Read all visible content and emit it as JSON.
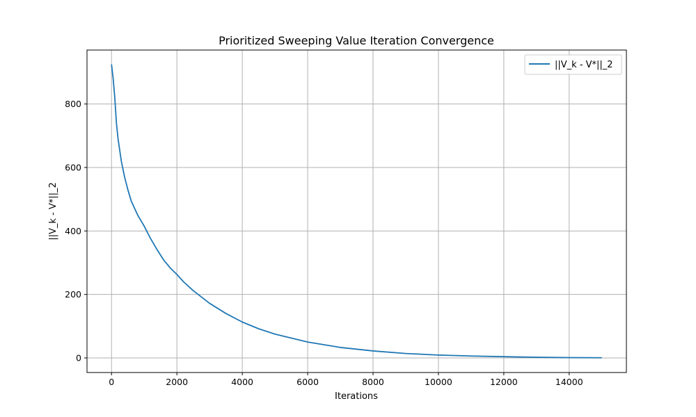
{
  "chart_data": {
    "type": "line",
    "title": "Prioritized Sweeping Value Iteration Convergence",
    "xlabel": "Iterations",
    "ylabel": "||V_k - V*||_2",
    "xlim": [
      -750,
      15750
    ],
    "ylim": [
      -46,
      970
    ],
    "xticks": [
      0,
      2000,
      4000,
      6000,
      8000,
      10000,
      12000,
      14000
    ],
    "yticks": [
      0,
      200,
      400,
      600,
      800
    ],
    "grid": true,
    "legend_position": "upper right",
    "series": [
      {
        "name": "||V_k - V*||_2",
        "color": "#1f77b4",
        "x": [
          0,
          50,
          100,
          150,
          200,
          300,
          400,
          500,
          600,
          800,
          1000,
          1100,
          1200,
          1400,
          1600,
          1800,
          2000,
          2200,
          2500,
          3000,
          3500,
          4000,
          4500,
          5000,
          6000,
          7000,
          8000,
          9000,
          10000,
          11000,
          12000,
          13000,
          14000,
          15000
        ],
        "values": [
          925,
          880,
          820,
          740,
          690,
          620,
          570,
          530,
          495,
          450,
          415,
          395,
          375,
          340,
          308,
          283,
          263,
          240,
          212,
          172,
          140,
          113,
          92,
          75,
          50,
          33,
          22,
          14,
          9,
          6,
          4,
          2,
          1,
          0.5
        ]
      }
    ]
  }
}
